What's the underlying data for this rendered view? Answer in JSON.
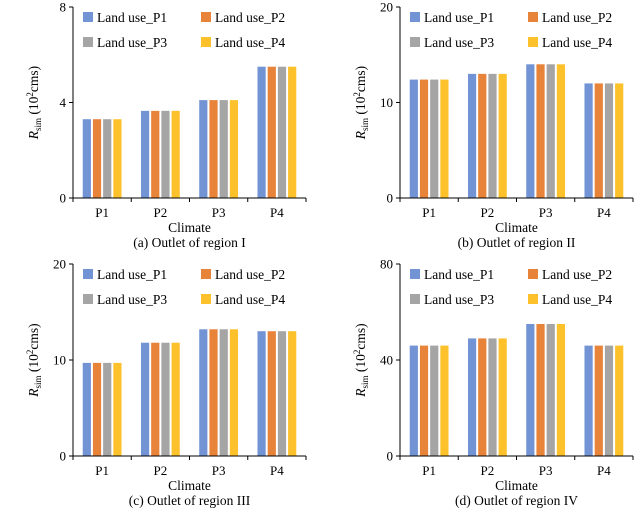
{
  "figure": {
    "colors": {
      "P1": "#7294d4",
      "P2": "#e8833a",
      "P3": "#a5a5a5",
      "P4": "#fdc12c"
    }
  },
  "chart_data": [
    {
      "type": "bar",
      "caption": "(a) Outlet of region I",
      "xlabel": "Climate",
      "ylabel": "R_sim (10^2 cms)",
      "ylim": [
        0,
        8
      ],
      "yticks": [
        "0",
        "4",
        "8"
      ],
      "categories": [
        "P1",
        "P2",
        "P3",
        "P4"
      ],
      "legend_position": "top-left",
      "series": [
        {
          "name": "Land use_P1",
          "values": [
            3.3,
            3.65,
            4.1,
            5.5
          ]
        },
        {
          "name": "Land use_P2",
          "values": [
            3.3,
            3.65,
            4.1,
            5.5
          ]
        },
        {
          "name": "Land use_P3",
          "values": [
            3.3,
            3.65,
            4.1,
            5.5
          ]
        },
        {
          "name": "Land use_P4",
          "values": [
            3.3,
            3.65,
            4.1,
            5.5
          ]
        }
      ]
    },
    {
      "type": "bar",
      "caption": "(b) Outlet of region II",
      "xlabel": "Climate",
      "ylabel": "R_sim (10^2 cms)",
      "ylim": [
        0,
        20
      ],
      "yticks": [
        "0",
        "10",
        "20"
      ],
      "categories": [
        "P1",
        "P2",
        "P3",
        "P4"
      ],
      "legend_position": "top-left",
      "series": [
        {
          "name": "Land use_P1",
          "values": [
            12.4,
            13.0,
            14.0,
            12.0
          ]
        },
        {
          "name": "Land use_P2",
          "values": [
            12.4,
            13.0,
            14.0,
            12.0
          ]
        },
        {
          "name": "Land use_P3",
          "values": [
            12.4,
            13.0,
            14.0,
            12.0
          ]
        },
        {
          "name": "Land use_P4",
          "values": [
            12.4,
            13.0,
            14.0,
            12.0
          ]
        }
      ]
    },
    {
      "type": "bar",
      "caption": "(c) Outlet of region III",
      "xlabel": "Climate",
      "ylabel": "R_sim (10^2 cms)",
      "ylim": [
        0,
        20
      ],
      "yticks": [
        "0",
        "10",
        "20"
      ],
      "categories": [
        "P1",
        "P2",
        "P3",
        "P4"
      ],
      "legend_position": "top-left",
      "series": [
        {
          "name": "Land use_P1",
          "values": [
            9.7,
            11.8,
            13.2,
            13.0
          ]
        },
        {
          "name": "Land use_P2",
          "values": [
            9.7,
            11.8,
            13.2,
            13.0
          ]
        },
        {
          "name": "Land use_P3",
          "values": [
            9.7,
            11.8,
            13.2,
            13.0
          ]
        },
        {
          "name": "Land use_P4",
          "values": [
            9.7,
            11.8,
            13.2,
            13.0
          ]
        }
      ]
    },
    {
      "type": "bar",
      "caption": "(d) Outlet of region IV",
      "xlabel": "Climate",
      "ylabel": "R_sim (10^2 cms)",
      "ylim": [
        0,
        80
      ],
      "yticks": [
        "0",
        "40",
        "80"
      ],
      "categories": [
        "P1",
        "P2",
        "P3",
        "P4"
      ],
      "legend_position": "top-left",
      "series": [
        {
          "name": "Land use_P1",
          "values": [
            46,
            49,
            55,
            46
          ]
        },
        {
          "name": "Land use_P2",
          "values": [
            46,
            49,
            55,
            46
          ]
        },
        {
          "name": "Land use_P3",
          "values": [
            46,
            49,
            55,
            46
          ]
        },
        {
          "name": "Land use_P4",
          "values": [
            46,
            49,
            55,
            46
          ]
        }
      ]
    }
  ]
}
